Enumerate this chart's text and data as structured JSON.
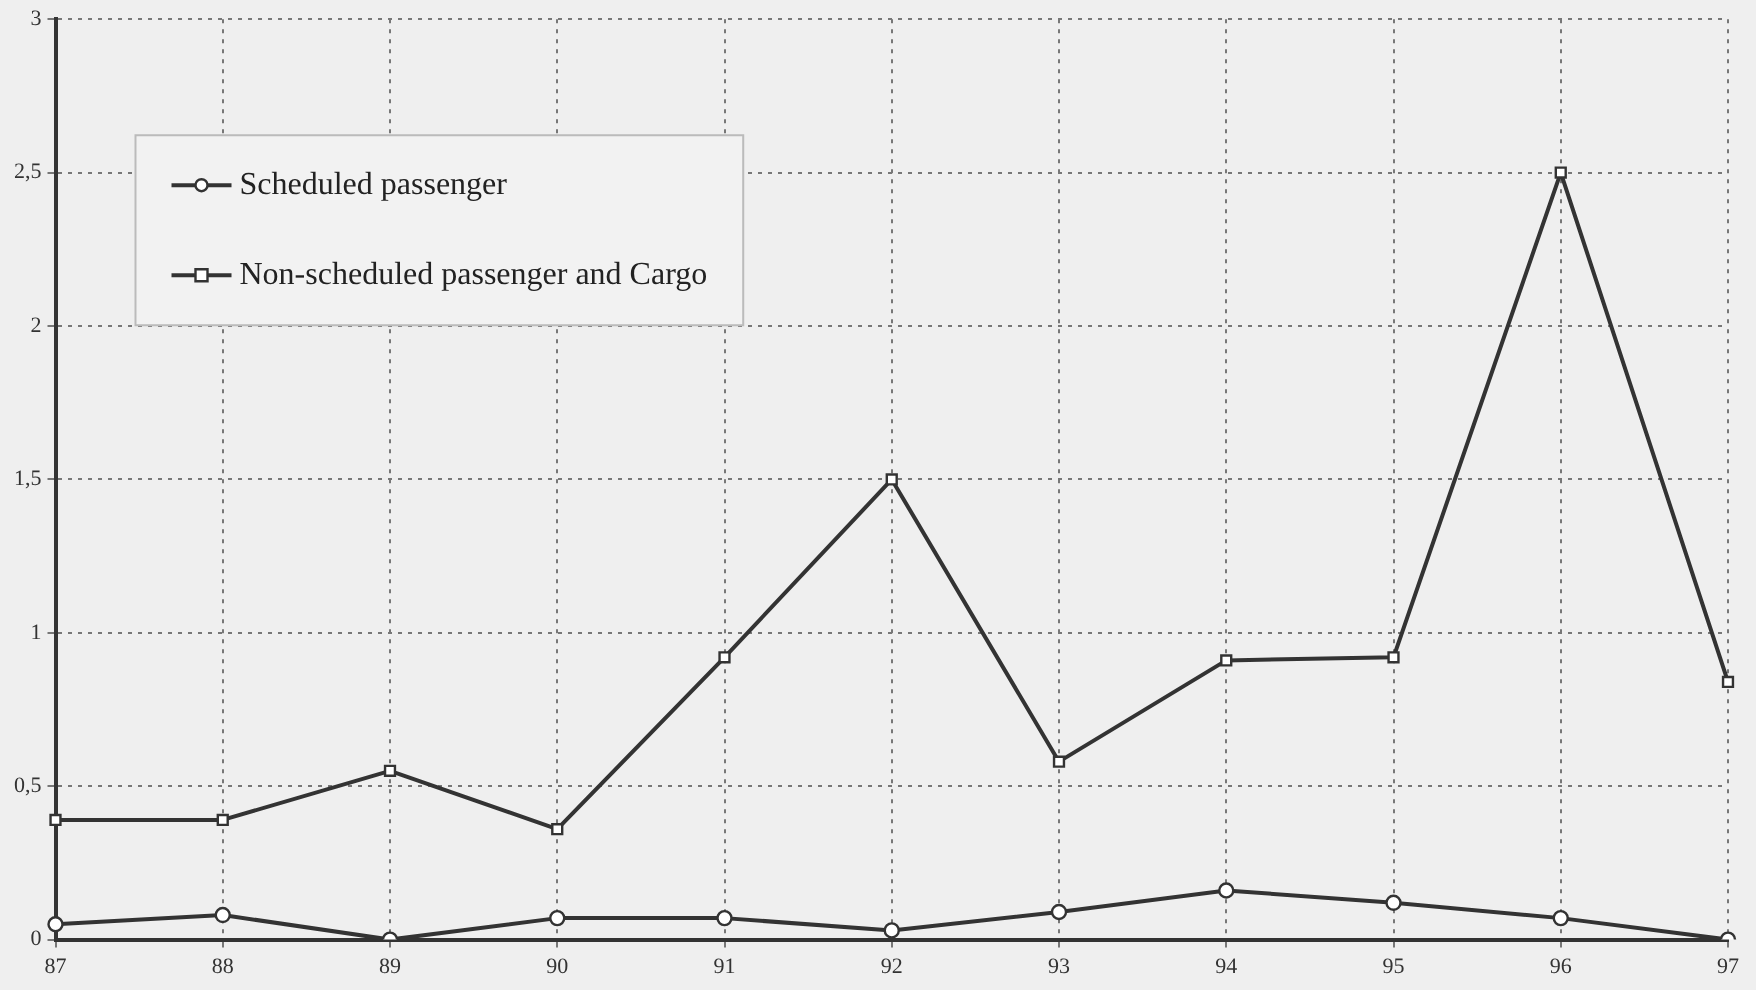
{
  "chart_data": {
    "type": "line",
    "categories": [
      "87",
      "88",
      "89",
      "90",
      "91",
      "92",
      "93",
      "94",
      "95",
      "96",
      "97"
    ],
    "series": [
      {
        "name": "Scheduled passenger",
        "color": "#333333",
        "marker": "circle",
        "values": [
          0.05,
          0.08,
          0,
          0.07,
          0.07,
          0.03,
          0.09,
          0.16,
          0.12,
          0.07,
          0
        ]
      },
      {
        "name": "Non-scheduled passenger and Cargo",
        "color": "#333333",
        "marker": "square",
        "values": [
          0.39,
          0.39,
          0.55,
          0.36,
          0.92,
          1.5,
          0.58,
          0.91,
          0.92,
          2.5,
          0.84
        ]
      }
    ],
    "ylim": [
      0,
      3
    ],
    "yticks": [
      {
        "value": 0,
        "label": "0"
      },
      {
        "value": 0.5,
        "label": "0,5"
      },
      {
        "value": 1,
        "label": "1"
      },
      {
        "value": 1.5,
        "label": "1,5"
      },
      {
        "value": 2,
        "label": "2"
      },
      {
        "value": 2.5,
        "label": "2,5"
      },
      {
        "value": 3,
        "label": "3"
      }
    ],
    "grid": true,
    "legend": "top left",
    "line_style": "solid"
  }
}
